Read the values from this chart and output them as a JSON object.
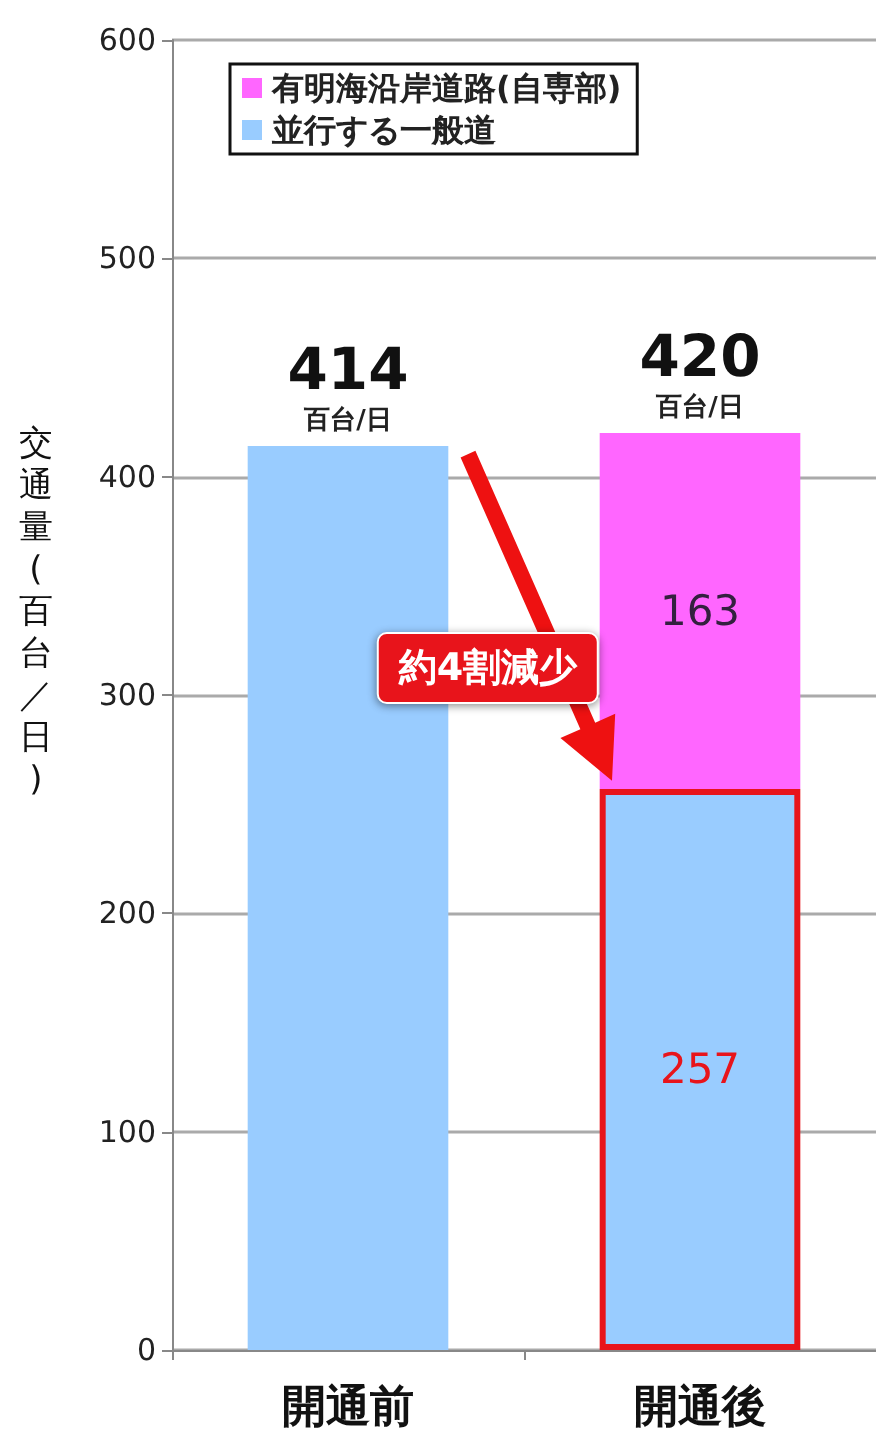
{
  "chart_data": {
    "type": "bar",
    "stacked": true,
    "ylabel": "交通量(百台／日)",
    "categories": [
      "開通前",
      "開通後"
    ],
    "series": [
      {
        "name": "並行する一般道",
        "color": "#99ccff",
        "values": [
          414,
          257
        ],
        "value_labels": [
          null,
          "257"
        ]
      },
      {
        "name": "有明海沿岸道路(自専部)",
        "color": "#ff66ff",
        "values": [
          null,
          163
        ],
        "value_labels": [
          null,
          "163"
        ]
      }
    ],
    "totals": [
      "414",
      "420"
    ],
    "annotations": [
      {
        "text": "百台/日",
        "x": "開通前",
        "y": 414
      },
      {
        "text": "百台/日",
        "x": "開通後",
        "y": 420
      },
      "約4割減少"
    ],
    "ylim": [
      0,
      600
    ],
    "yticks": [
      0,
      100,
      200,
      300,
      400,
      500,
      600
    ],
    "grid": "y",
    "legend": "top left"
  }
}
